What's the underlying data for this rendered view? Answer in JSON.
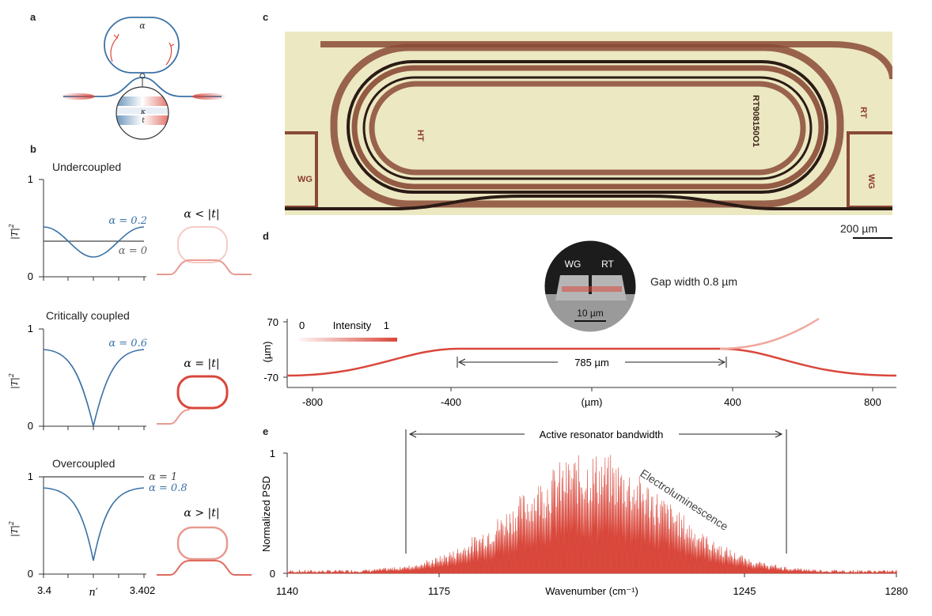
{
  "panel_letters": {
    "a": "a",
    "b": "b",
    "c": "c",
    "d": "d",
    "e": "e"
  },
  "colors": {
    "blue": "#3b72a6",
    "red": "#d9473b",
    "light_red": "#f2b5ad",
    "dark": "#333333",
    "microscope_bg": "#ede9c4"
  },
  "panel_a": {
    "alpha_label": "α",
    "kappa_label": "κ",
    "t_label": "t"
  },
  "panel_b": {
    "y_ticks": [
      "1",
      "0"
    ],
    "y_label": "|T|",
    "y_label_sup": "2",
    "x_ticks": [
      "3.4",
      "3.402"
    ],
    "x_label": "n′",
    "plots": [
      {
        "title": "Undercoupled",
        "labels": [
          "α = 0.2",
          "α = 0"
        ],
        "regime": "α < |t|"
      },
      {
        "title": "Critically coupled",
        "labels": [
          "α = 0.6"
        ],
        "regime": "α = |t|"
      },
      {
        "title": "Overcoupled",
        "labels": [
          "α = 1",
          "α = 0.8"
        ],
        "regime": "α > |t|"
      }
    ]
  },
  "panel_c": {
    "labels": {
      "wg_left": "WG",
      "wg_right": "WG",
      "ht": "HT",
      "rt": "RT",
      "chip_id": "RT908150O1"
    },
    "scale_bar": "200 µm"
  },
  "panel_d": {
    "inset_labels": {
      "wg": "WG",
      "rt": "RT",
      "scale": "10 µm"
    },
    "gap_text": "Gap width 0.8 µm",
    "y_ticks": [
      "70",
      "-70"
    ],
    "y_label": "(µm)",
    "x_ticks": [
      "-800",
      "-400",
      "(µm)",
      "400",
      "800"
    ],
    "intensity": {
      "min": "0",
      "label": "Intensity",
      "max": "1"
    },
    "length_label": "785 µm"
  },
  "panel_e": {
    "bandwidth_label": "Active resonator bandwidth",
    "y_label": "Normalized PSD",
    "y_ticks": [
      "1",
      "0"
    ],
    "x_ticks": [
      "1140",
      "1175",
      "1245",
      "1280"
    ],
    "x_label": "Wavenumber (cm⁻¹)",
    "annotation": "Electroluminescence"
  }
}
